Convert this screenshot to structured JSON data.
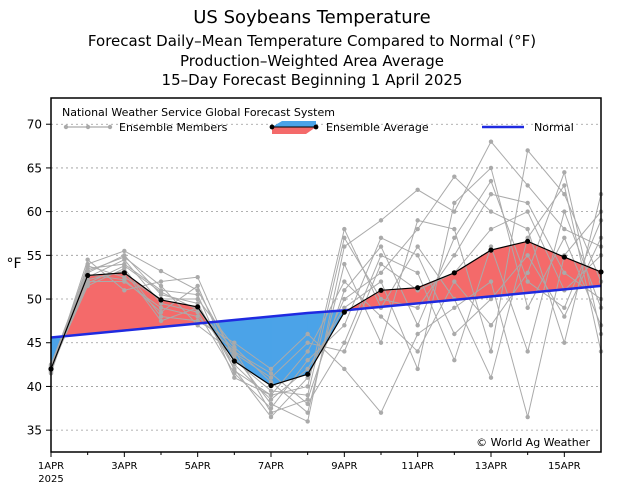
{
  "chart_data": {
    "type": "line",
    "title": "US Soybeans Temperature",
    "subtitle_lines": [
      "Forecast Daily–Mean Temperature Compared to Normal (°F)",
      "Production–Weighted Area Average",
      "15–Day Forecast Beginning 1 April 2025"
    ],
    "ylabel": "°F",
    "ylim": [
      32.5,
      73
    ],
    "xlim": [
      0,
      15
    ],
    "yticks": [
      35,
      40,
      45,
      50,
      55,
      60,
      65,
      70
    ],
    "xticks": [
      {
        "x": 0,
        "label": "1APR",
        "sublabel": "2025"
      },
      {
        "x": 2,
        "label": "3APR"
      },
      {
        "x": 4,
        "label": "5APR"
      },
      {
        "x": 6,
        "label": "7APR"
      },
      {
        "x": 8,
        "label": "9APR"
      },
      {
        "x": 10,
        "label": "11APR"
      },
      {
        "x": 12,
        "label": "13APR"
      },
      {
        "x": 14,
        "label": "15APR"
      }
    ],
    "model_label": "National Weather Service Global Forecast System",
    "legend": {
      "members": "Ensemble Members",
      "average": "Ensemble Average",
      "normal": "Normal"
    },
    "credit": "© World Ag Weather",
    "x": [
      0,
      1,
      2,
      3,
      4,
      5,
      6,
      7,
      8,
      9,
      10,
      11,
      12,
      13,
      14,
      15
    ],
    "ensemble_average": [
      42.0,
      52.7,
      53.0,
      49.9,
      49.1,
      42.9,
      40.1,
      41.4,
      48.5,
      51.0,
      51.3,
      53.0,
      55.6,
      56.6,
      54.8,
      53.1
    ],
    "normal": [
      45.6,
      46.0,
      46.4,
      46.8,
      47.2,
      47.6,
      48.0,
      48.4,
      48.7,
      49.1,
      49.5,
      49.9,
      50.3,
      50.7,
      51.1,
      51.5
    ],
    "ensemble_members": [
      [
        41.5,
        54.0,
        55.5,
        53.2,
        51.0,
        43.5,
        38.0,
        36.0,
        56.0,
        59.0,
        62.5,
        60.0,
        68.0,
        63.0,
        58.0,
        56.0
      ],
      [
        42.5,
        53.5,
        54.0,
        51.0,
        50.5,
        41.0,
        39.0,
        44.0,
        52.0,
        48.0,
        44.0,
        52.0,
        47.0,
        53.0,
        64.5,
        46.0
      ],
      [
        42.0,
        52.0,
        52.0,
        49.0,
        48.0,
        44.0,
        41.5,
        38.0,
        45.0,
        55.0,
        53.0,
        43.0,
        56.0,
        44.0,
        60.0,
        49.0
      ],
      [
        41.8,
        53.0,
        55.0,
        50.5,
        49.5,
        42.0,
        36.5,
        41.0,
        50.0,
        53.0,
        58.0,
        64.0,
        60.0,
        58.0,
        45.0,
        62.0
      ],
      [
        42.2,
        51.5,
        53.5,
        48.0,
        47.5,
        45.0,
        42.0,
        46.0,
        42.0,
        37.0,
        46.0,
        49.0,
        52.0,
        36.5,
        55.0,
        60.0
      ],
      [
        41.6,
        54.5,
        51.0,
        52.0,
        52.5,
        43.0,
        39.5,
        39.0,
        57.0,
        50.0,
        49.0,
        55.0,
        62.0,
        61.0,
        53.0,
        50.0
      ],
      [
        42.4,
        52.5,
        54.5,
        49.5,
        48.5,
        41.5,
        37.5,
        43.0,
        47.0,
        57.0,
        55.0,
        46.0,
        50.0,
        55.0,
        48.0,
        57.0
      ],
      [
        42.0,
        53.8,
        52.5,
        50.0,
        50.0,
        44.5,
        40.5,
        37.0,
        54.0,
        45.0,
        59.0,
        58.0,
        44.0,
        67.0,
        62.0,
        52.0
      ],
      [
        41.9,
        52.2,
        53.2,
        47.5,
        49.0,
        42.5,
        38.5,
        42.0,
        49.0,
        52.0,
        42.0,
        61.0,
        65.0,
        49.0,
        57.0,
        47.0
      ],
      [
        42.1,
        53.2,
        54.8,
        51.5,
        47.0,
        43.8,
        41.0,
        45.0,
        44.0,
        54.0,
        51.0,
        53.0,
        58.0,
        60.0,
        51.0,
        55.0
      ],
      [
        41.7,
        52.8,
        52.2,
        48.5,
        51.5,
        41.8,
        39.0,
        40.0,
        58.0,
        49.0,
        56.0,
        50.0,
        41.0,
        57.0,
        63.0,
        44.0
      ],
      [
        42.3,
        51.8,
        53.8,
        50.8,
        48.8,
        44.2,
        37.0,
        38.5,
        51.0,
        56.0,
        47.0,
        57.0,
        63.5,
        52.0,
        49.0,
        59.0
      ]
    ]
  },
  "colors": {
    "member": "#aaaaaa",
    "normal": "#1f2ae0",
    "above": "#f46a6a",
    "below": "#4ba3e8",
    "average": "#000000"
  }
}
